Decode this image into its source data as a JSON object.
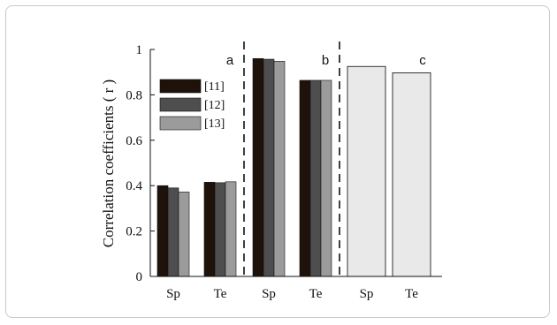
{
  "chart_data": {
    "type": "bar",
    "ylabel": "Correlation coefficients ( r )",
    "xlabel": "",
    "ylim": [
      0,
      1
    ],
    "yticks": [
      0,
      0.2,
      0.4,
      0.6,
      0.8,
      1
    ],
    "ytick_labels": [
      "0",
      "0.2",
      "0.4",
      "0.6",
      "0.8",
      "1"
    ],
    "categories": [
      "Sp",
      "Te",
      "Sp",
      "Te",
      "Sp",
      "Te"
    ],
    "panels": [
      {
        "label": "a",
        "categories": [
          "Sp",
          "Te"
        ],
        "series": [
          {
            "name": "[11]",
            "values": [
              0.4,
              0.415
            ]
          },
          {
            "name": "[12]",
            "values": [
              0.39,
              0.413
            ]
          },
          {
            "name": "[13]",
            "values": [
              0.372,
              0.417
            ]
          }
        ]
      },
      {
        "label": "b",
        "categories": [
          "Sp",
          "Te"
        ],
        "series": [
          {
            "name": "[11]",
            "values": [
              0.96,
              0.864
            ]
          },
          {
            "name": "[12]",
            "values": [
              0.957,
              0.864
            ]
          },
          {
            "name": "[13]",
            "values": [
              0.948,
              0.864
            ]
          }
        ]
      },
      {
        "label": "c",
        "categories": [
          "Sp",
          "Te"
        ],
        "series": [
          {
            "name": "",
            "values": [
              0.925,
              0.897
            ]
          }
        ]
      }
    ],
    "legend": {
      "placement": "top-left",
      "entries": [
        "[11]",
        "[12]",
        "[13]"
      ]
    },
    "colors": {
      "series_11": "#1e120b",
      "series_12": "#4e4e4e",
      "series_13": "#9b9b9b",
      "panel_c": "#e9e9e9"
    },
    "grid": false
  }
}
